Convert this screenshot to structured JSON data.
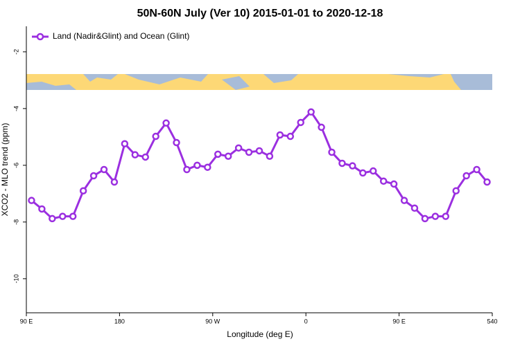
{
  "chart_data": {
    "type": "line",
    "title": "50N-60N July (Ver 10)   2015-01-01 to 2020-12-18",
    "x_label": "Longitude (deg E)",
    "y_label": "XCO2 - MLO trend (ppm)",
    "x": [
      95,
      105,
      115,
      125,
      135,
      145,
      155,
      165,
      175,
      185,
      195,
      205,
      215,
      225,
      235,
      245,
      255,
      265,
      275,
      285,
      295,
      305,
      315,
      325,
      335,
      345,
      355,
      365,
      375,
      385,
      395,
      405,
      415,
      425,
      435,
      445,
      455,
      465,
      475,
      485,
      495,
      505,
      515,
      525,
      535
    ],
    "series": [
      {
        "name": "Land (Nadir&Glint) and Ocean (Glint)",
        "color": "#9b2fe0",
        "values": [
          -7.24,
          -7.54,
          -7.88,
          -7.8,
          -7.8,
          -6.9,
          -6.37,
          -6.15,
          -6.59,
          -5.24,
          -5.63,
          -5.71,
          -4.98,
          -4.51,
          -5.2,
          -6.15,
          -6.0,
          -6.07,
          -5.61,
          -5.68,
          -5.39,
          -5.54,
          -5.49,
          -5.68,
          -4.93,
          -4.98,
          -4.49,
          -4.12,
          -4.66,
          -5.54,
          -5.93,
          -6.02,
          -6.27,
          -6.2,
          -6.56,
          -6.66,
          -7.24,
          -7.51,
          -7.88,
          -7.8,
          -7.8,
          -6.9,
          -6.37,
          -6.15,
          -6.59
        ]
      }
    ],
    "xlim": [
      90,
      540
    ],
    "xticks": [
      {
        "value": 90,
        "label": "90 E"
      },
      180,
      {
        "value": 270,
        "label": "90 W"
      },
      {
        "value": 360,
        "label": "0"
      },
      {
        "value": 450,
        "label": "90 E"
      },
      540
    ],
    "ylim": [
      -11.2,
      -1.1
    ],
    "yticks": [
      -2,
      -4,
      -6,
      -8,
      -10
    ],
    "legend": "top-left"
  }
}
